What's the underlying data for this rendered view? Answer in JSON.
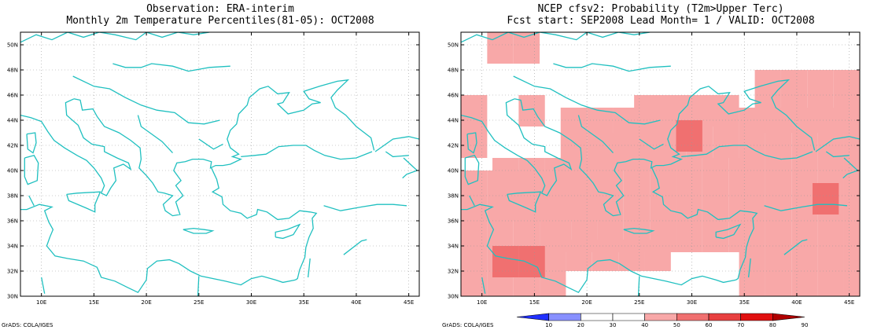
{
  "panels": [
    {
      "title_line1": "Observation: ERA-interim",
      "title_line2": "Monthly 2m Temperature Percentiles(81-05): OCT2008",
      "footer": "GrADS: COLA/IGES"
    },
    {
      "title_line1": "NCEP cfsv2: Probability (T2m>Upper Terc)",
      "title_line2": "Fcst start: SEP2008  Lead Month= 1 / VALID: OCT2008",
      "footer": "GrADS: COLA/IGES"
    }
  ],
  "map": {
    "lon_range": [
      8,
      46
    ],
    "lat_range": [
      30,
      51
    ],
    "lon_ticks": [
      "10E",
      "15E",
      "20E",
      "25E",
      "30E",
      "35E",
      "40E",
      "45E"
    ],
    "lat_ticks": [
      "30N",
      "32N",
      "34N",
      "36N",
      "38N",
      "40N",
      "42N",
      "44N",
      "46N",
      "48N",
      "50N"
    ],
    "coast_color": "#20c0c0"
  },
  "colorbar": {
    "labels": [
      "10",
      "20",
      "30",
      "40",
      "50",
      "60",
      "70",
      "80",
      "90"
    ],
    "colors": [
      "#2030ff",
      "#8890ff",
      "#ffffff",
      "#ffffff",
      "#f8a8a8",
      "#f07070",
      "#e84040",
      "#e01010",
      "#b00000"
    ]
  }
}
